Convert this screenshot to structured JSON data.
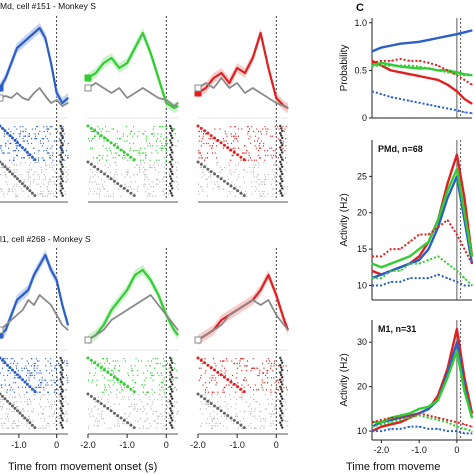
{
  "labels": {
    "row1_title": "Md, cell #151 - Monkey S",
    "row2_title": "l1, cell #268 - Monkey S",
    "panel_c_letter": "C",
    "x_axis_label_left": "Time from movement onset (s)",
    "x_axis_label_right": "Time from moveme"
  },
  "colors": {
    "blue": "#2b5fc7",
    "green": "#33cc33",
    "red": "#e02020",
    "gray": "#8a8a8a",
    "blue_band": "#b9c9ee",
    "green_band": "#bff0bf",
    "red_band": "#f4c2c2"
  },
  "chart_data": [
    {
      "type": "line",
      "panel": "row1-blue",
      "xlim": [
        -1.5,
        0.3
      ],
      "ylim": [
        0,
        1
      ],
      "series": [
        {
          "color_key": "blue",
          "x": [
            -1.5,
            -1.35,
            -1.2,
            -1.05,
            -0.9,
            -0.75,
            -0.6,
            -0.45,
            -0.3,
            -0.15,
            0,
            0.15,
            0.3
          ],
          "y": [
            0.3,
            0.4,
            0.55,
            0.7,
            0.75,
            0.8,
            0.85,
            0.9,
            0.8,
            0.55,
            0.25,
            0.15,
            0.2
          ]
        },
        {
          "color_key": "gray",
          "x": [
            -1.5,
            -1.35,
            -1.2,
            -1.05,
            -0.9,
            -0.75,
            -0.6,
            -0.45,
            -0.3,
            -0.15,
            0,
            0.15,
            0.3
          ],
          "y": [
            0.2,
            0.22,
            0.2,
            0.25,
            0.2,
            0.18,
            0.25,
            0.3,
            0.22,
            0.15,
            0.18,
            0.12,
            0.15
          ]
        }
      ],
      "ticks_x": []
    },
    {
      "type": "line",
      "panel": "row1-green",
      "xlim": [
        -2.0,
        0.3
      ],
      "ylim": [
        0,
        1
      ],
      "series": [
        {
          "color_key": "green",
          "x": [
            -2.0,
            -1.8,
            -1.6,
            -1.4,
            -1.2,
            -1.0,
            -0.8,
            -0.6,
            -0.4,
            -0.2,
            0,
            0.2,
            0.3
          ],
          "y": [
            0.4,
            0.45,
            0.55,
            0.6,
            0.5,
            0.55,
            0.7,
            0.85,
            0.65,
            0.4,
            0.15,
            0.1,
            0.12
          ]
        },
        {
          "color_key": "gray",
          "x": [
            -2.0,
            -1.8,
            -1.6,
            -1.4,
            -1.2,
            -1.0,
            -0.8,
            -0.6,
            -0.4,
            -0.2,
            0,
            0.2,
            0.3
          ],
          "y": [
            0.3,
            0.35,
            0.3,
            0.25,
            0.3,
            0.2,
            0.25,
            0.3,
            0.25,
            0.2,
            0.18,
            0.12,
            0.15
          ]
        }
      ],
      "ticks_x": []
    },
    {
      "type": "line",
      "panel": "row1-red",
      "xlim": [
        -2.0,
        0.3
      ],
      "ylim": [
        0,
        1
      ],
      "series": [
        {
          "color_key": "red",
          "x": [
            -2.0,
            -1.8,
            -1.6,
            -1.4,
            -1.2,
            -1.0,
            -0.8,
            -0.6,
            -0.4,
            -0.2,
            0,
            0.2,
            0.3
          ],
          "y": [
            0.25,
            0.3,
            0.4,
            0.45,
            0.35,
            0.5,
            0.45,
            0.6,
            0.85,
            0.5,
            0.2,
            0.12,
            0.1
          ]
        },
        {
          "color_key": "gray",
          "x": [
            -2.0,
            -1.8,
            -1.6,
            -1.4,
            -1.2,
            -1.0,
            -0.8,
            -0.6,
            -0.4,
            -0.2,
            0,
            0.2,
            0.3
          ],
          "y": [
            0.3,
            0.35,
            0.3,
            0.4,
            0.3,
            0.35,
            0.25,
            0.3,
            0.25,
            0.2,
            0.15,
            0.12,
            0.1
          ]
        }
      ],
      "ticks_x": []
    },
    {
      "type": "line",
      "panel": "row2-blue",
      "xlim": [
        -1.5,
        0.3
      ],
      "ylim": [
        0,
        1
      ],
      "series": [
        {
          "color_key": "blue",
          "x": [
            -1.5,
            -1.35,
            -1.2,
            -1.05,
            -0.9,
            -0.75,
            -0.6,
            -0.45,
            -0.3,
            -0.15,
            0,
            0.15,
            0.3
          ],
          "y": [
            0.15,
            0.2,
            0.35,
            0.5,
            0.55,
            0.6,
            0.75,
            0.85,
            0.95,
            0.8,
            0.7,
            0.45,
            0.25
          ]
        },
        {
          "color_key": "gray",
          "x": [
            -1.5,
            -1.35,
            -1.2,
            -1.05,
            -0.9,
            -0.75,
            -0.6,
            -0.45,
            -0.3,
            -0.15,
            0,
            0.15,
            0.3
          ],
          "y": [
            0.2,
            0.25,
            0.3,
            0.35,
            0.4,
            0.5,
            0.45,
            0.55,
            0.5,
            0.45,
            0.35,
            0.25,
            0.2
          ]
        }
      ],
      "ticks_x": [
        "-1.0",
        "0"
      ]
    },
    {
      "type": "line",
      "panel": "row2-green",
      "xlim": [
        -2.0,
        0.3
      ],
      "ylim": [
        0,
        1
      ],
      "series": [
        {
          "color_key": "green",
          "x": [
            -2.0,
            -1.8,
            -1.6,
            -1.4,
            -1.2,
            -1.0,
            -0.8,
            -0.6,
            -0.4,
            -0.2,
            0,
            0.2,
            0.3
          ],
          "y": [
            0.1,
            0.15,
            0.25,
            0.4,
            0.5,
            0.6,
            0.75,
            0.8,
            0.7,
            0.55,
            0.35,
            0.2,
            0.15
          ]
        },
        {
          "color_key": "gray",
          "x": [
            -2.0,
            -1.8,
            -1.6,
            -1.4,
            -1.2,
            -1.0,
            -0.8,
            -0.6,
            -0.4,
            -0.2,
            0,
            0.2,
            0.3
          ],
          "y": [
            0.1,
            0.15,
            0.2,
            0.3,
            0.35,
            0.4,
            0.45,
            0.5,
            0.55,
            0.45,
            0.35,
            0.25,
            0.2
          ]
        }
      ],
      "ticks_x": [
        "-2.0",
        "-1.0",
        "0"
      ]
    },
    {
      "type": "line",
      "panel": "row2-red",
      "xlim": [
        -2.0,
        0.3
      ],
      "ylim": [
        0,
        1
      ],
      "series": [
        {
          "color_key": "red",
          "x": [
            -2.0,
            -1.8,
            -1.6,
            -1.4,
            -1.2,
            -1.0,
            -0.8,
            -0.6,
            -0.4,
            -0.2,
            0,
            0.2,
            0.3
          ],
          "y": [
            0.1,
            0.15,
            0.2,
            0.3,
            0.35,
            0.4,
            0.45,
            0.5,
            0.6,
            0.75,
            0.55,
            0.3,
            0.2
          ]
        },
        {
          "color_key": "gray",
          "x": [
            -2.0,
            -1.8,
            -1.6,
            -1.4,
            -1.2,
            -1.0,
            -0.8,
            -0.6,
            -0.4,
            -0.2,
            0,
            0.2,
            0.3
          ],
          "y": [
            0.1,
            0.15,
            0.2,
            0.25,
            0.35,
            0.4,
            0.45,
            0.5,
            0.45,
            0.5,
            0.35,
            0.25,
            0.2
          ]
        }
      ],
      "ticks_x": [
        "-2.0",
        "-1.0",
        "0"
      ]
    },
    {
      "type": "line",
      "panel": "c-probability",
      "ylabel": "Probability",
      "xlim": [
        -2.25,
        0.4
      ],
      "ylim": [
        0,
        1.05
      ],
      "yticks": [
        "0",
        "0.5",
        "1.0"
      ],
      "series": [
        {
          "color_key": "blue",
          "style": "solid",
          "x": [
            -2.25,
            -2.0,
            -1.75,
            -1.5,
            -1.25,
            -1.0,
            -0.75,
            -0.5,
            -0.25,
            0,
            0.2,
            0.4
          ],
          "y": [
            0.7,
            0.74,
            0.76,
            0.78,
            0.79,
            0.8,
            0.82,
            0.84,
            0.86,
            0.88,
            0.9,
            0.92
          ]
        },
        {
          "color_key": "red",
          "style": "solid",
          "x": [
            -2.25,
            -2.0,
            -1.75,
            -1.5,
            -1.25,
            -1.0,
            -0.75,
            -0.5,
            -0.25,
            0,
            0.2,
            0.4
          ],
          "y": [
            0.6,
            0.55,
            0.5,
            0.48,
            0.46,
            0.44,
            0.42,
            0.4,
            0.35,
            0.28,
            0.2,
            0.15
          ]
        },
        {
          "color_key": "green",
          "style": "solid",
          "x": [
            -2.25,
            -2.0,
            -1.75,
            -1.5,
            -1.25,
            -1.0,
            -0.75,
            -0.5,
            -0.25,
            0,
            0.2,
            0.4
          ],
          "y": [
            0.55,
            0.58,
            0.56,
            0.54,
            0.53,
            0.52,
            0.52,
            0.5,
            0.5,
            0.48,
            0.46,
            0.45
          ]
        },
        {
          "color_key": "red",
          "style": "dotted",
          "x": [
            -2.25,
            -2.0,
            -1.75,
            -1.5,
            -1.25,
            -1.0,
            -0.75,
            -0.5,
            -0.25,
            0,
            0.2,
            0.4
          ],
          "y": [
            0.58,
            0.6,
            0.6,
            0.62,
            0.6,
            0.6,
            0.58,
            0.55,
            0.5,
            0.45,
            0.4,
            0.35
          ]
        },
        {
          "color_key": "green",
          "style": "dotted",
          "x": [
            -2.25,
            -2.0,
            -1.75,
            -1.5,
            -1.25,
            -1.0,
            -0.75,
            -0.5,
            -0.25,
            0,
            0.2,
            0.4
          ],
          "y": [
            0.55,
            0.55,
            0.55,
            0.55,
            0.55,
            0.54,
            0.52,
            0.5,
            0.48,
            0.46,
            0.45,
            0.45
          ]
        },
        {
          "color_key": "blue",
          "style": "dotted",
          "x": [
            -2.25,
            -2.0,
            -1.75,
            -1.5,
            -1.25,
            -1.0,
            -0.75,
            -0.5,
            -0.25,
            0,
            0.2,
            0.4
          ],
          "y": [
            0.28,
            0.25,
            0.22,
            0.2,
            0.18,
            0.16,
            0.14,
            0.12,
            0.1,
            0.08,
            0.06,
            0.05
          ]
        }
      ]
    },
    {
      "type": "line",
      "panel": "c-pmd",
      "title": "PMd, n=68",
      "ylabel": "Activity (Hz)",
      "xlim": [
        -2.25,
        0.4
      ],
      "ylim": [
        8,
        30
      ],
      "yticks": [
        "10",
        "15",
        "20",
        "25"
      ],
      "series": [
        {
          "color_key": "red",
          "style": "solid",
          "x": [
            -2.25,
            -2.0,
            -1.75,
            -1.5,
            -1.25,
            -1.0,
            -0.75,
            -0.5,
            -0.25,
            0,
            0.2,
            0.4
          ],
          "y": [
            12,
            11.5,
            12,
            12.5,
            13,
            14,
            16,
            19,
            24,
            28,
            22,
            14
          ]
        },
        {
          "color_key": "blue",
          "style": "solid",
          "x": [
            -2.25,
            -2.0,
            -1.75,
            -1.5,
            -1.25,
            -1.0,
            -0.75,
            -0.5,
            -0.25,
            0,
            0.2,
            0.4
          ],
          "y": [
            11,
            11.5,
            12,
            12.5,
            13,
            13.5,
            15,
            18,
            22,
            25,
            19,
            13
          ]
        },
        {
          "color_key": "green",
          "style": "solid",
          "x": [
            -2.25,
            -2.0,
            -1.75,
            -1.5,
            -1.25,
            -1.0,
            -0.75,
            -0.5,
            -0.25,
            0,
            0.2,
            0.4
          ],
          "y": [
            13,
            12.5,
            13,
            13.5,
            14,
            15,
            16,
            19,
            23,
            26,
            20,
            14
          ]
        },
        {
          "color_key": "red",
          "style": "dotted",
          "x": [
            -2.25,
            -2.0,
            -1.75,
            -1.5,
            -1.25,
            -1.0,
            -0.75,
            -0.5,
            -0.25,
            0,
            0.2,
            0.4
          ],
          "y": [
            14,
            14,
            15,
            15,
            16,
            17,
            17,
            18,
            19,
            17,
            15,
            13
          ]
        },
        {
          "color_key": "green",
          "style": "dotted",
          "x": [
            -2.25,
            -2.0,
            -1.75,
            -1.5,
            -1.25,
            -1.0,
            -0.75,
            -0.5,
            -0.25,
            0,
            0.2,
            0.4
          ],
          "y": [
            11,
            11,
            12,
            12,
            13,
            13,
            13.5,
            14,
            13,
            12,
            11,
            10
          ]
        },
        {
          "color_key": "blue",
          "style": "dotted",
          "x": [
            -2.25,
            -2.0,
            -1.75,
            -1.5,
            -1.25,
            -1.0,
            -0.75,
            -0.5,
            -0.25,
            0,
            0.2,
            0.4
          ],
          "y": [
            10,
            10,
            10.5,
            10.5,
            11,
            11,
            11,
            11.5,
            11,
            10.5,
            10,
            10
          ]
        }
      ]
    },
    {
      "type": "line",
      "panel": "c-m1",
      "title": "M1, n=31",
      "ylabel": "Activity (Hz)",
      "xlim": [
        -2.25,
        0.4
      ],
      "ylim": [
        8,
        35
      ],
      "yticks": [
        "10",
        "20",
        "30"
      ],
      "xticks": [
        "-2.0",
        "-1.0",
        "0"
      ],
      "series": [
        {
          "color_key": "red",
          "style": "solid",
          "x": [
            -2.25,
            -2.0,
            -1.75,
            -1.5,
            -1.25,
            -1.0,
            -0.75,
            -0.5,
            -0.25,
            0,
            0.2,
            0.4
          ],
          "y": [
            10,
            11,
            11.5,
            12,
            13,
            14,
            15,
            18,
            24,
            33,
            22,
            14
          ]
        },
        {
          "color_key": "blue",
          "style": "solid",
          "x": [
            -2.25,
            -2.0,
            -1.75,
            -1.5,
            -1.25,
            -1.0,
            -0.75,
            -0.5,
            -0.25,
            0,
            0.2,
            0.4
          ],
          "y": [
            11,
            12,
            12.5,
            13,
            13.5,
            14,
            15,
            17,
            23,
            30,
            20,
            13
          ]
        },
        {
          "color_key": "green",
          "style": "solid",
          "x": [
            -2.25,
            -2.0,
            -1.75,
            -1.5,
            -1.25,
            -1.0,
            -0.75,
            -0.5,
            -0.25,
            0,
            0.2,
            0.4
          ],
          "y": [
            12,
            12,
            13,
            13.5,
            14,
            15,
            15.5,
            17,
            22,
            28,
            19,
            13
          ]
        },
        {
          "color_key": "red",
          "style": "dotted",
          "x": [
            -2.25,
            -2.0,
            -1.75,
            -1.5,
            -1.25,
            -1.0,
            -0.75,
            -0.5,
            -0.25,
            0,
            0.2,
            0.4
          ],
          "y": [
            12,
            12.5,
            13,
            13,
            13.5,
            14,
            13.5,
            13,
            12.5,
            12,
            11.5,
            11
          ]
        },
        {
          "color_key": "green",
          "style": "dotted",
          "x": [
            -2.25,
            -2.0,
            -1.75,
            -1.5,
            -1.25,
            -1.0,
            -0.75,
            -0.5,
            -0.25,
            0,
            0.2,
            0.4
          ],
          "y": [
            11,
            11.5,
            12,
            12.5,
            13,
            13.5,
            13,
            12.5,
            12,
            11,
            10.5,
            10
          ]
        },
        {
          "color_key": "blue",
          "style": "dotted",
          "x": [
            -2.25,
            -2.0,
            -1.75,
            -1.5,
            -1.25,
            -1.0,
            -0.75,
            -0.5,
            -0.25,
            0,
            0.2,
            0.4
          ],
          "y": [
            10,
            10,
            10.5,
            10.5,
            11,
            11,
            10.5,
            10.5,
            10,
            10,
            9.5,
            9.5
          ]
        }
      ]
    }
  ]
}
